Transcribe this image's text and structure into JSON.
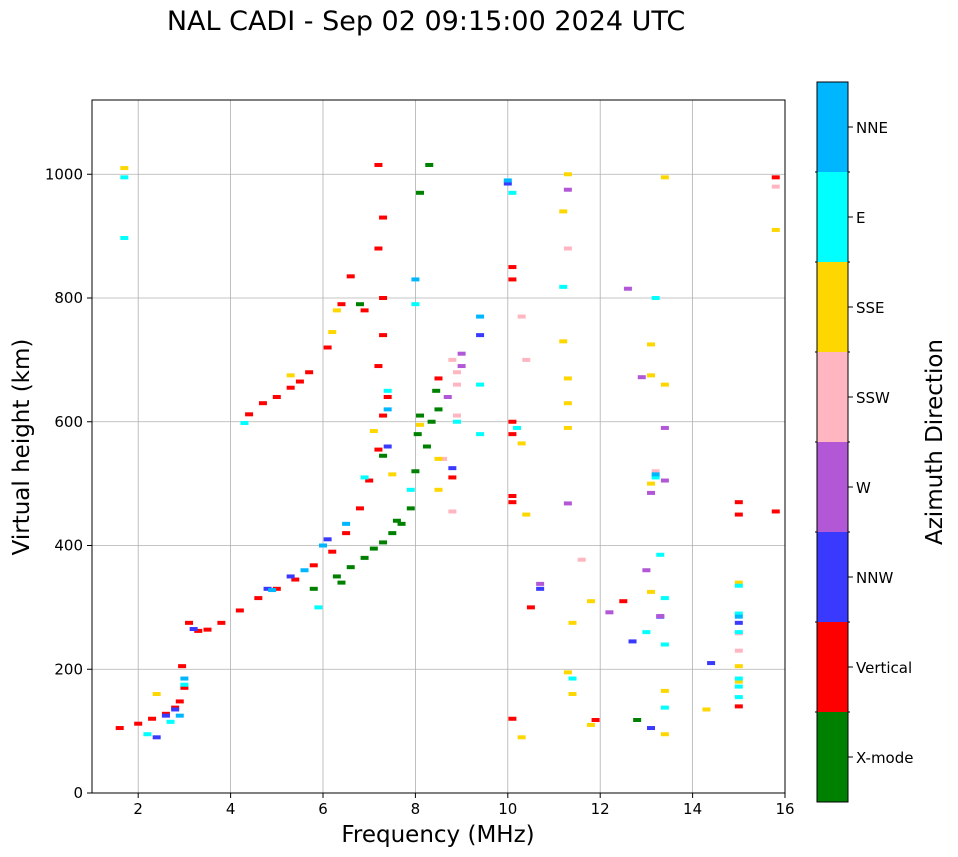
{
  "chart_data": {
    "type": "scatter",
    "title": "NAL CADI - Sep 02 09:15:00 2024 UTC",
    "xlabel": "Frequency (MHz)",
    "ylabel": "Virtual height (km)",
    "xlim": [
      1,
      16
    ],
    "ylim": [
      0,
      1120
    ],
    "xticks": [
      2,
      4,
      6,
      8,
      10,
      12,
      14,
      16
    ],
    "yticks": [
      0,
      200,
      400,
      600,
      800,
      1000
    ],
    "grid": true,
    "colorbar": {
      "label": "Azimuth Direction",
      "categories": [
        {
          "name": "X-mode",
          "color": "#008000"
        },
        {
          "name": "Vertical",
          "color": "#ff0000"
        },
        {
          "name": "NNW",
          "color": "#3a3aff"
        },
        {
          "name": "W",
          "color": "#b257d6"
        },
        {
          "name": "SSW",
          "color": "#ffb6c1"
        },
        {
          "name": "SSE",
          "color": "#ffd700"
        },
        {
          "name": "E",
          "color": "#00ffff"
        },
        {
          "name": "NNE",
          "color": "#00b7ff"
        }
      ]
    },
    "series": [
      {
        "name": "X-mode",
        "points": [
          [
            6.3,
            350
          ],
          [
            6.6,
            365
          ],
          [
            6.9,
            380
          ],
          [
            7.1,
            395
          ],
          [
            7.3,
            405
          ],
          [
            7.5,
            420
          ],
          [
            7.7,
            435
          ],
          [
            7.9,
            460
          ],
          [
            8.0,
            520
          ],
          [
            8.05,
            580
          ],
          [
            8.1,
            610
          ],
          [
            8.25,
            560
          ],
          [
            8.35,
            600
          ],
          [
            8.5,
            620
          ],
          [
            8.45,
            650
          ],
          [
            8.1,
            970
          ],
          [
            8.3,
            1015
          ],
          [
            5.8,
            330
          ],
          [
            6.4,
            340
          ],
          [
            7.6,
            440
          ],
          [
            7.3,
            545
          ],
          [
            12.8,
            118
          ],
          [
            6.8,
            790
          ]
        ]
      },
      {
        "name": "Vertical",
        "points": [
          [
            1.6,
            105
          ],
          [
            2.0,
            112
          ],
          [
            2.3,
            120
          ],
          [
            2.6,
            128
          ],
          [
            2.8,
            138
          ],
          [
            2.9,
            148
          ],
          [
            3.0,
            170
          ],
          [
            2.95,
            205
          ],
          [
            3.1,
            275
          ],
          [
            3.3,
            262
          ],
          [
            3.5,
            264
          ],
          [
            3.8,
            275
          ],
          [
            4.2,
            295
          ],
          [
            4.6,
            315
          ],
          [
            5.0,
            330
          ],
          [
            5.4,
            345
          ],
          [
            5.8,
            368
          ],
          [
            6.2,
            390
          ],
          [
            6.5,
            420
          ],
          [
            6.8,
            460
          ],
          [
            7.0,
            505
          ],
          [
            7.2,
            555
          ],
          [
            7.3,
            610
          ],
          [
            7.4,
            640
          ],
          [
            7.2,
            690
          ],
          [
            7.3,
            740
          ],
          [
            6.9,
            780
          ],
          [
            7.3,
            800
          ],
          [
            7.2,
            880
          ],
          [
            7.3,
            930
          ],
          [
            7.2,
            1015
          ],
          [
            6.6,
            835
          ],
          [
            6.4,
            790
          ],
          [
            6.1,
            720
          ],
          [
            5.7,
            680
          ],
          [
            5.5,
            665
          ],
          [
            5.3,
            655
          ],
          [
            5.0,
            640
          ],
          [
            4.7,
            630
          ],
          [
            4.4,
            612
          ],
          [
            10.1,
            850
          ],
          [
            10.1,
            830
          ],
          [
            10.1,
            600
          ],
          [
            10.1,
            580
          ],
          [
            10.1,
            480
          ],
          [
            10.1,
            470
          ],
          [
            10.5,
            300
          ],
          [
            10.1,
            120
          ],
          [
            11.9,
            118
          ],
          [
            12.5,
            310
          ],
          [
            15.0,
            140
          ],
          [
            15.0,
            450
          ],
          [
            15.0,
            470
          ],
          [
            15.8,
            455
          ],
          [
            15.8,
            995
          ],
          [
            8.5,
            670
          ],
          [
            8.8,
            510
          ]
        ]
      },
      {
        "name": "NNW",
        "points": [
          [
            2.6,
            125
          ],
          [
            2.8,
            135
          ],
          [
            2.4,
            90
          ],
          [
            3.2,
            265
          ],
          [
            4.8,
            330
          ],
          [
            5.3,
            350
          ],
          [
            6.1,
            410
          ],
          [
            7.4,
            560
          ],
          [
            8.8,
            525
          ],
          [
            9.4,
            740
          ],
          [
            10.0,
            985
          ],
          [
            10.7,
            330
          ],
          [
            12.7,
            245
          ],
          [
            13.3,
            285
          ],
          [
            14.4,
            210
          ],
          [
            13.1,
            105
          ],
          [
            15.0,
            275
          ]
        ]
      },
      {
        "name": "W",
        "points": [
          [
            9.0,
            710
          ],
          [
            9.0,
            690
          ],
          [
            10.7,
            338
          ],
          [
            11.3,
            468
          ],
          [
            12.6,
            815
          ],
          [
            12.9,
            672
          ],
          [
            13.0,
            360
          ],
          [
            13.1,
            485
          ],
          [
            13.4,
            590
          ],
          [
            13.4,
            505
          ],
          [
            11.3,
            975
          ],
          [
            12.2,
            292
          ],
          [
            13.3,
            286
          ],
          [
            8.7,
            640
          ]
        ]
      },
      {
        "name": "SSW",
        "points": [
          [
            8.9,
            660
          ],
          [
            8.9,
            680
          ],
          [
            8.8,
            700
          ],
          [
            8.6,
            540
          ],
          [
            8.9,
            610
          ],
          [
            10.3,
            770
          ],
          [
            10.4,
            700
          ],
          [
            11.3,
            880
          ],
          [
            11.6,
            377
          ],
          [
            13.2,
            520
          ],
          [
            15.0,
            258
          ],
          [
            15.0,
            230
          ],
          [
            15.8,
            980
          ],
          [
            8.8,
            455
          ]
        ]
      },
      {
        "name": "SSE",
        "points": [
          [
            1.7,
            1010
          ],
          [
            2.4,
            160
          ],
          [
            6.2,
            745
          ],
          [
            6.3,
            780
          ],
          [
            5.3,
            675
          ],
          [
            7.1,
            585
          ],
          [
            7.5,
            515
          ],
          [
            8.1,
            595
          ],
          [
            8.5,
            540
          ],
          [
            8.5,
            490
          ],
          [
            10.3,
            565
          ],
          [
            10.4,
            450
          ],
          [
            10.3,
            90
          ],
          [
            11.2,
            940
          ],
          [
            11.2,
            730
          ],
          [
            11.3,
            670
          ],
          [
            11.3,
            630
          ],
          [
            11.3,
            590
          ],
          [
            11.3,
            195
          ],
          [
            11.4,
            160
          ],
          [
            11.4,
            275
          ],
          [
            11.8,
            310
          ],
          [
            11.8,
            110
          ],
          [
            13.1,
            725
          ],
          [
            13.1,
            675
          ],
          [
            13.1,
            500
          ],
          [
            13.1,
            325
          ],
          [
            13.4,
            995
          ],
          [
            13.4,
            660
          ],
          [
            13.4,
            165
          ],
          [
            13.4,
            95
          ],
          [
            14.3,
            135
          ],
          [
            15.0,
            340
          ],
          [
            15.0,
            180
          ],
          [
            15.0,
            205
          ],
          [
            15.8,
            910
          ],
          [
            11.3,
            1000
          ]
        ]
      },
      {
        "name": "E",
        "points": [
          [
            1.7,
            995
          ],
          [
            1.7,
            897
          ],
          [
            2.2,
            95
          ],
          [
            2.7,
            115
          ],
          [
            3.0,
            175
          ],
          [
            4.3,
            598
          ],
          [
            5.9,
            300
          ],
          [
            6.9,
            510
          ],
          [
            7.4,
            650
          ],
          [
            7.9,
            490
          ],
          [
            8.9,
            600
          ],
          [
            9.4,
            660
          ],
          [
            10.2,
            590
          ],
          [
            11.2,
            818
          ],
          [
            11.4,
            185
          ],
          [
            13.0,
            260
          ],
          [
            13.2,
            800
          ],
          [
            13.2,
            510
          ],
          [
            13.3,
            385
          ],
          [
            13.4,
            315
          ],
          [
            13.4,
            240
          ],
          [
            13.4,
            138
          ],
          [
            15.0,
            335
          ],
          [
            15.0,
            290
          ],
          [
            15.0,
            260
          ],
          [
            15.0,
            185
          ],
          [
            15.0,
            172
          ],
          [
            15.0,
            155
          ],
          [
            10.1,
            970
          ],
          [
            8.0,
            790
          ],
          [
            9.4,
            580
          ]
        ]
      },
      {
        "name": "NNE",
        "points": [
          [
            2.9,
            125
          ],
          [
            3.0,
            185
          ],
          [
            4.9,
            328
          ],
          [
            5.6,
            360
          ],
          [
            6.0,
            400
          ],
          [
            6.5,
            435
          ],
          [
            7.4,
            620
          ],
          [
            8.0,
            830
          ],
          [
            9.4,
            770
          ],
          [
            10.0,
            990
          ],
          [
            15.0,
            285
          ],
          [
            13.2,
            515
          ]
        ]
      }
    ]
  }
}
